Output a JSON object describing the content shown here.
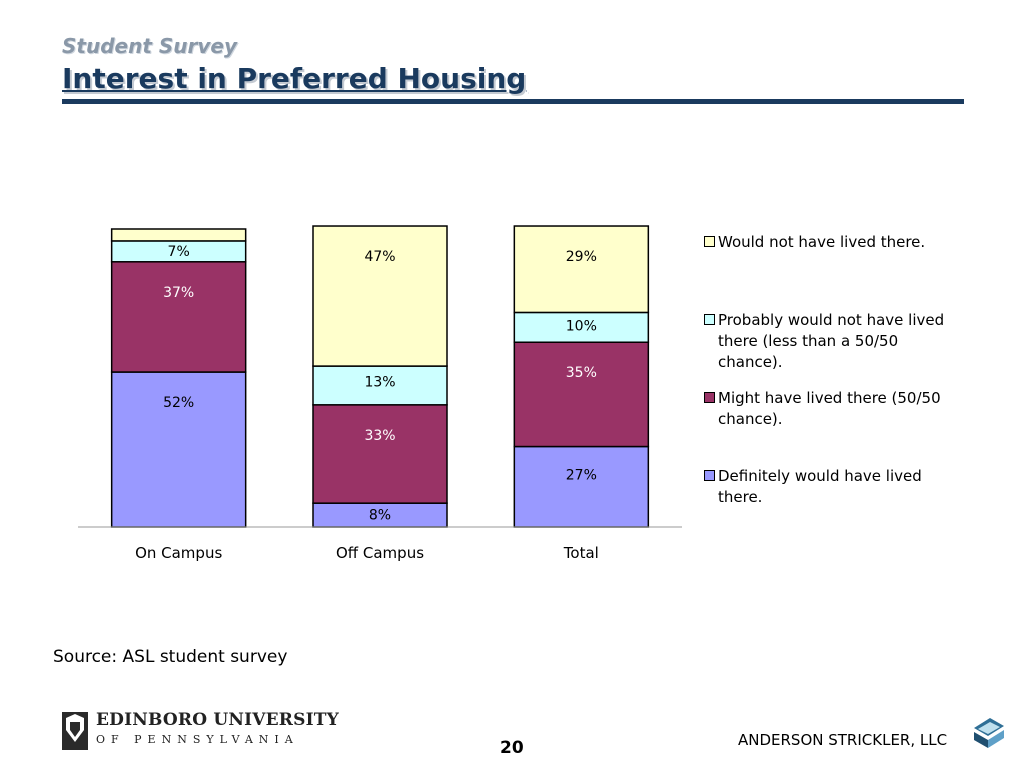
{
  "header": {
    "subtitle": "Student Survey",
    "title": "Interest in Preferred Housing"
  },
  "chart_data": {
    "type": "bar",
    "stacked": true,
    "categories": [
      "On Campus",
      "Off Campus",
      "Total"
    ],
    "ylim": [
      0,
      100
    ],
    "grid": false,
    "legend_position": "right",
    "series": [
      {
        "name": "Definitely would have lived there.",
        "values": [
          52,
          8,
          27
        ],
        "labels": [
          "52%",
          "8%",
          "27%"
        ],
        "color": "#9999ff"
      },
      {
        "name": "Might have lived there (50/50 chance).",
        "values": [
          37,
          33,
          35
        ],
        "labels": [
          "37%",
          "33%",
          "35%"
        ],
        "color": "#993366"
      },
      {
        "name": "Probably would not have lived there (less than a 50/50 chance).",
        "values": [
          7,
          13,
          10
        ],
        "labels": [
          "7%",
          "13%",
          "10%"
        ],
        "color": "#ccffff"
      },
      {
        "name": "Would not have lived there.",
        "values": [
          4,
          47,
          29
        ],
        "labels": [
          "",
          "47%",
          "29%"
        ],
        "color": "#ffffcc"
      }
    ]
  },
  "source": "Source: ASL student survey",
  "footer": {
    "university_name": "EDINBORO UNIVERSITY",
    "university_state": "OF PENNSYLVANIA",
    "page_number": "20",
    "company": "ANDERSON STRICKLER, LLC"
  }
}
